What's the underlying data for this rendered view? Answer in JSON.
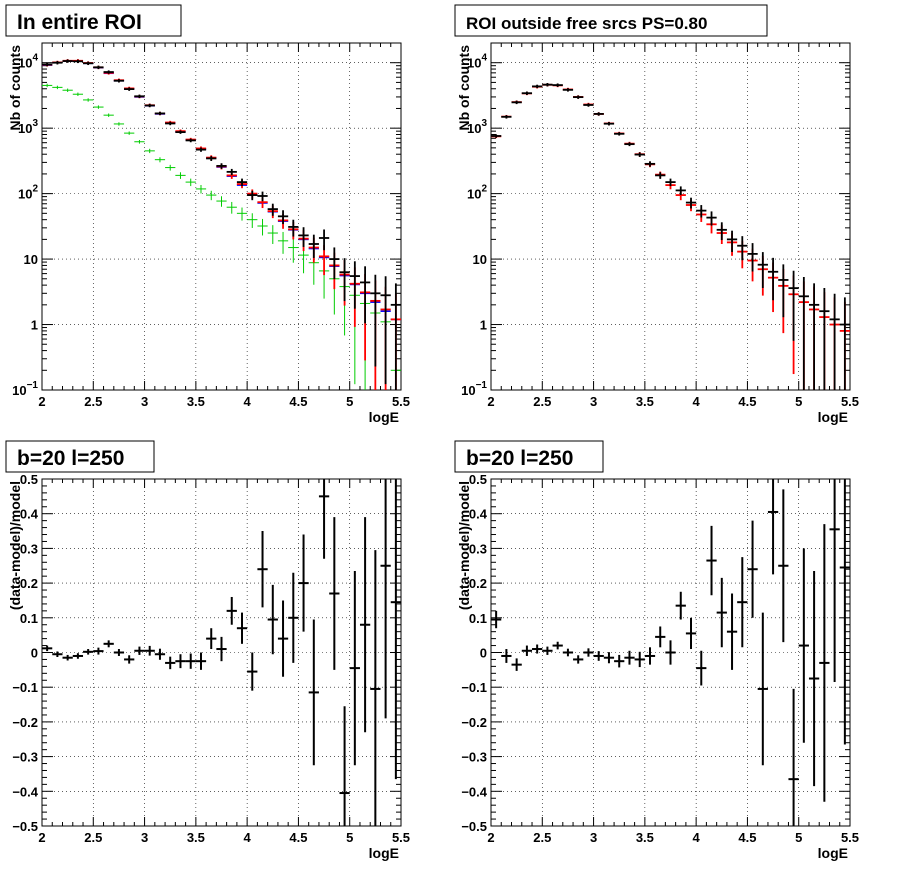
{
  "colors": {
    "data": "#000000",
    "model": "#ff0000",
    "component_blue": "#0000ff",
    "component_green": "#00cc00"
  },
  "chart_data": [
    {
      "type": "scatter",
      "title": "In entire ROI",
      "xlabel": "logE",
      "ylabel": "Nb of counts",
      "xlim": [
        2,
        5.5
      ],
      "ylim": [
        0.1,
        20000
      ],
      "ylog": true,
      "grid": true,
      "xticks": [
        "2",
        "2.5",
        "3",
        "3.5",
        "4",
        "4.5",
        "5",
        "5.5"
      ],
      "yticks": [
        {
          "v": 0.1,
          "base": "10",
          "exp": "−1"
        },
        {
          "v": 1,
          "base": "1",
          "exp": ""
        },
        {
          "v": 10,
          "base": "10",
          "exp": ""
        },
        {
          "v": 100,
          "base": "10",
          "exp": "2"
        },
        {
          "v": 1000,
          "base": "10",
          "exp": "3"
        },
        {
          "v": 10000,
          "base": "10",
          "exp": "4"
        }
      ],
      "series": [
        {
          "color": "#0000ff",
          "style": "step",
          "x": [
            2.05,
            2.15,
            2.25,
            2.35,
            2.45,
            2.55,
            2.65,
            2.75,
            2.85,
            2.95,
            3.05,
            3.15,
            3.25,
            3.35,
            3.45,
            3.55,
            3.65,
            3.75,
            3.85,
            3.95,
            4.05,
            4.15,
            4.25,
            4.35,
            4.45,
            4.55,
            4.65,
            4.75,
            4.85,
            4.95,
            5.05,
            5.15,
            5.25,
            5.35,
            5.45
          ],
          "y": [
            9200,
            10000,
            10600,
            10600,
            9800,
            8400,
            6900,
            5300,
            4000,
            3000,
            2200,
            1650,
            1200,
            880,
            660,
            480,
            350,
            255,
            185,
            135,
            98,
            72,
            53,
            38,
            28,
            20,
            14.5,
            10.6,
            7.8,
            5.6,
            4.1,
            3.0,
            2.2,
            1.6,
            1.2
          ]
        },
        {
          "color": "#00cc00",
          "style": "cross",
          "x": [
            2.05,
            2.15,
            2.25,
            2.35,
            2.45,
            2.55,
            2.65,
            2.75,
            2.85,
            2.95,
            3.05,
            3.15,
            3.25,
            3.35,
            3.45,
            3.55,
            3.65,
            3.75,
            3.85,
            3.95,
            4.05,
            4.15,
            4.25,
            4.35,
            4.45,
            4.55,
            4.65,
            4.75,
            4.85,
            4.95,
            5.05,
            5.15,
            5.25,
            5.35,
            5.45
          ],
          "y": [
            4500,
            4200,
            3800,
            3300,
            2700,
            2100,
            1580,
            1160,
            840,
            620,
            450,
            330,
            250,
            190,
            150,
            118,
            95,
            77,
            62,
            50,
            40,
            32,
            25,
            19,
            15,
            11.5,
            8.8,
            6.6,
            5.0,
            3.8,
            2.8,
            2.1,
            1.5,
            1.1,
            0.2
          ]
        },
        {
          "color": "#ff0000",
          "style": "cross",
          "x": [
            2.05,
            2.15,
            2.25,
            2.35,
            2.45,
            2.55,
            2.65,
            2.75,
            2.85,
            2.95,
            3.05,
            3.15,
            3.25,
            3.35,
            3.45,
            3.55,
            3.65,
            3.75,
            3.85,
            3.95,
            4.05,
            4.15,
            4.25,
            4.35,
            4.45,
            4.55,
            4.65,
            4.75,
            4.85,
            4.95,
            5.05,
            5.15,
            5.25,
            5.35,
            5.45
          ],
          "y": [
            9300,
            10100,
            10700,
            10700,
            9900,
            8500,
            7000,
            5400,
            4050,
            3050,
            2240,
            1680,
            1220,
            900,
            670,
            490,
            355,
            260,
            190,
            140,
            100,
            74,
            54,
            39,
            28.5,
            20.5,
            15,
            11,
            8,
            5.8,
            4.2,
            3.1,
            2.3,
            1.7,
            1.2
          ]
        },
        {
          "color": "#000000",
          "style": "cross",
          "x": [
            2.05,
            2.15,
            2.25,
            2.35,
            2.45,
            2.55,
            2.65,
            2.75,
            2.85,
            2.95,
            3.05,
            3.15,
            3.25,
            3.35,
            3.45,
            3.55,
            3.65,
            3.75,
            3.85,
            3.95,
            4.05,
            4.15,
            4.25,
            4.35,
            4.45,
            4.55,
            4.65,
            4.75,
            4.85,
            4.95,
            5.05,
            5.15,
            5.25,
            5.35,
            5.45
          ],
          "y": [
            9400,
            10000,
            10600,
            10500,
            9800,
            8500,
            7200,
            5300,
            3950,
            3070,
            2220,
            1680,
            1180,
            870,
            650,
            470,
            345,
            265,
            215,
            150,
            95,
            92,
            58,
            45,
            31,
            23,
            17,
            21,
            10,
            6.3,
            5.5,
            4.4,
            3.0,
            2.8,
            2.0
          ]
        }
      ]
    },
    {
      "type": "scatter",
      "title": "ROI outside free srcs PS=0.80",
      "xlabel": "logE",
      "ylabel": "Nb of counts",
      "xlim": [
        2,
        5.5
      ],
      "ylim": [
        0.1,
        20000
      ],
      "ylog": true,
      "grid": true,
      "xticks": [
        "2",
        "2.5",
        "3",
        "3.5",
        "4",
        "4.5",
        "5",
        "5.5"
      ],
      "yticks": [
        {
          "v": 0.1,
          "base": "10",
          "exp": "−1"
        },
        {
          "v": 1,
          "base": "1",
          "exp": ""
        },
        {
          "v": 10,
          "base": "10",
          "exp": ""
        },
        {
          "v": 100,
          "base": "10",
          "exp": "2"
        },
        {
          "v": 1000,
          "base": "10",
          "exp": "3"
        },
        {
          "v": 10000,
          "base": "10",
          "exp": "4"
        }
      ],
      "series": [
        {
          "color": "#ff0000",
          "style": "cross",
          "x": [
            2.05,
            2.15,
            2.25,
            2.35,
            2.45,
            2.55,
            2.65,
            2.75,
            2.85,
            2.95,
            3.05,
            3.15,
            3.25,
            3.35,
            3.45,
            3.55,
            3.65,
            3.75,
            3.85,
            3.95,
            4.05,
            4.15,
            4.25,
            4.35,
            4.45,
            4.55,
            4.65,
            4.75,
            4.85,
            4.95,
            5.05,
            5.15,
            5.25,
            5.35,
            5.45
          ],
          "y": [
            750,
            1500,
            2500,
            3400,
            4300,
            4600,
            4500,
            3900,
            3000,
            2300,
            1650,
            1180,
            830,
            580,
            400,
            280,
            195,
            135,
            95,
            67,
            48,
            34,
            25,
            18,
            13,
            9.5,
            7,
            5.2,
            3.9,
            2.9,
            2.2,
            1.7,
            1.3,
            1.0,
            0.8
          ]
        },
        {
          "color": "#000000",
          "style": "cross",
          "x": [
            2.05,
            2.15,
            2.25,
            2.35,
            2.45,
            2.55,
            2.65,
            2.75,
            2.85,
            2.95,
            3.05,
            3.15,
            3.25,
            3.35,
            3.45,
            3.55,
            3.65,
            3.75,
            3.85,
            3.95,
            4.05,
            4.15,
            4.25,
            4.35,
            4.45,
            4.55,
            4.65,
            4.75,
            4.85,
            4.95,
            5.05,
            5.15,
            5.25,
            5.35,
            5.45
          ],
          "y": [
            760,
            1490,
            2480,
            3420,
            4350,
            4620,
            4550,
            3850,
            2980,
            2260,
            1650,
            1170,
            820,
            570,
            395,
            285,
            190,
            150,
            112,
            73,
            55,
            43,
            28,
            20,
            16,
            12,
            8.2,
            6.4,
            4.8,
            3.6,
            2.7,
            2.0,
            1.6,
            1.2,
            1.0
          ]
        }
      ]
    },
    {
      "type": "scatter",
      "title": "b=20 l=250",
      "xlabel": "logE",
      "ylabel": "(data-model)/model",
      "xlim": [
        2,
        5.5
      ],
      "ylim": [
        -0.5,
        0.5
      ],
      "ylog": false,
      "grid": true,
      "xticks": [
        "2",
        "2.5",
        "3",
        "3.5",
        "4",
        "4.5",
        "5",
        "5.5"
      ],
      "yticks": [
        {
          "v": -0.5,
          "base": "−0.5",
          "exp": ""
        },
        {
          "v": -0.4,
          "base": "−0.4",
          "exp": ""
        },
        {
          "v": -0.3,
          "base": "−0.3",
          "exp": ""
        },
        {
          "v": -0.2,
          "base": "−0.2",
          "exp": ""
        },
        {
          "v": -0.1,
          "base": "−0.1",
          "exp": ""
        },
        {
          "v": 0,
          "base": "0",
          "exp": ""
        },
        {
          "v": 0.1,
          "base": "0.1",
          "exp": ""
        },
        {
          "v": 0.2,
          "base": "0.2",
          "exp": ""
        },
        {
          "v": 0.3,
          "base": "0.3",
          "exp": ""
        },
        {
          "v": 0.4,
          "base": "0.4",
          "exp": ""
        },
        {
          "v": 0.5,
          "base": "0.5",
          "exp": ""
        }
      ],
      "series": [
        {
          "color": "#000000",
          "style": "errorbar",
          "x": [
            2.05,
            2.15,
            2.25,
            2.35,
            2.45,
            2.55,
            2.65,
            2.75,
            2.85,
            2.95,
            3.05,
            3.15,
            3.25,
            3.35,
            3.45,
            3.55,
            3.65,
            3.75,
            3.85,
            3.95,
            4.05,
            4.15,
            4.25,
            4.35,
            4.45,
            4.55,
            4.65,
            4.75,
            4.85,
            4.95,
            5.05,
            5.15,
            5.25,
            5.35,
            5.45
          ],
          "y": [
            0.012,
            -0.005,
            -0.015,
            -0.01,
            0.002,
            0.004,
            0.025,
            0.0,
            -0.02,
            0.005,
            0.005,
            -0.005,
            -0.03,
            -0.025,
            -0.025,
            -0.025,
            0.04,
            0.01,
            0.12,
            0.07,
            -0.055,
            0.24,
            0.095,
            0.04,
            0.1,
            0.2,
            -0.115,
            0.45,
            0.17,
            -0.405,
            -0.045,
            0.08,
            -0.105,
            0.25,
            0.145
          ],
          "err": [
            0.008,
            0.008,
            0.008,
            0.008,
            0.008,
            0.01,
            0.01,
            0.01,
            0.012,
            0.012,
            0.014,
            0.016,
            0.018,
            0.02,
            0.022,
            0.025,
            0.03,
            0.035,
            0.04,
            0.045,
            0.055,
            0.11,
            0.1,
            0.11,
            0.13,
            0.14,
            0.21,
            0.18,
            0.22,
            0.25,
            0.28,
            0.31,
            0.4,
            0.44,
            0.51
          ]
        }
      ]
    },
    {
      "type": "scatter",
      "title": "b=20 l=250",
      "xlabel": "logE",
      "ylabel": "(data-model)/model",
      "xlim": [
        2,
        5.5
      ],
      "ylim": [
        -0.5,
        0.5
      ],
      "ylog": false,
      "grid": true,
      "xticks": [
        "2",
        "2.5",
        "3",
        "3.5",
        "4",
        "4.5",
        "5",
        "5.5"
      ],
      "yticks": [
        {
          "v": -0.5,
          "base": "−0.5",
          "exp": ""
        },
        {
          "v": -0.4,
          "base": "−0.4",
          "exp": ""
        },
        {
          "v": -0.3,
          "base": "−0.3",
          "exp": ""
        },
        {
          "v": -0.2,
          "base": "−0.2",
          "exp": ""
        },
        {
          "v": -0.1,
          "base": "−0.1",
          "exp": ""
        },
        {
          "v": 0,
          "base": "0",
          "exp": ""
        },
        {
          "v": 0.1,
          "base": "0.1",
          "exp": ""
        },
        {
          "v": 0.2,
          "base": "0.2",
          "exp": ""
        },
        {
          "v": 0.3,
          "base": "0.3",
          "exp": ""
        },
        {
          "v": 0.4,
          "base": "0.4",
          "exp": ""
        },
        {
          "v": 0.5,
          "base": "0.5",
          "exp": ""
        }
      ],
      "series": [
        {
          "color": "#000000",
          "style": "errorbar",
          "x": [
            2.05,
            2.15,
            2.25,
            2.35,
            2.45,
            2.55,
            2.65,
            2.75,
            2.85,
            2.95,
            3.05,
            3.15,
            3.25,
            3.35,
            3.45,
            3.55,
            3.65,
            3.75,
            3.85,
            3.95,
            4.05,
            4.15,
            4.25,
            4.35,
            4.45,
            4.55,
            4.65,
            4.75,
            4.85,
            4.95,
            5.05,
            5.15,
            5.25,
            5.35,
            5.45
          ],
          "y": [
            0.095,
            -0.01,
            -0.035,
            0.005,
            0.01,
            0.005,
            0.02,
            0.0,
            -0.02,
            0.0,
            -0.01,
            -0.015,
            -0.025,
            -0.015,
            -0.02,
            -0.01,
            0.045,
            0.0,
            0.135,
            0.055,
            -0.045,
            0.265,
            0.115,
            0.06,
            0.145,
            0.24,
            -0.105,
            0.405,
            0.25,
            -0.365,
            0.02,
            -0.075,
            -0.03,
            0.355,
            0.245
          ],
          "err": [
            0.025,
            0.02,
            0.018,
            0.015,
            0.013,
            0.012,
            0.011,
            0.011,
            0.012,
            0.012,
            0.014,
            0.016,
            0.018,
            0.02,
            0.022,
            0.025,
            0.03,
            0.035,
            0.04,
            0.045,
            0.05,
            0.1,
            0.1,
            0.11,
            0.13,
            0.14,
            0.22,
            0.18,
            0.22,
            0.26,
            0.28,
            0.31,
            0.4,
            0.44,
            0.51
          ]
        }
      ]
    }
  ]
}
